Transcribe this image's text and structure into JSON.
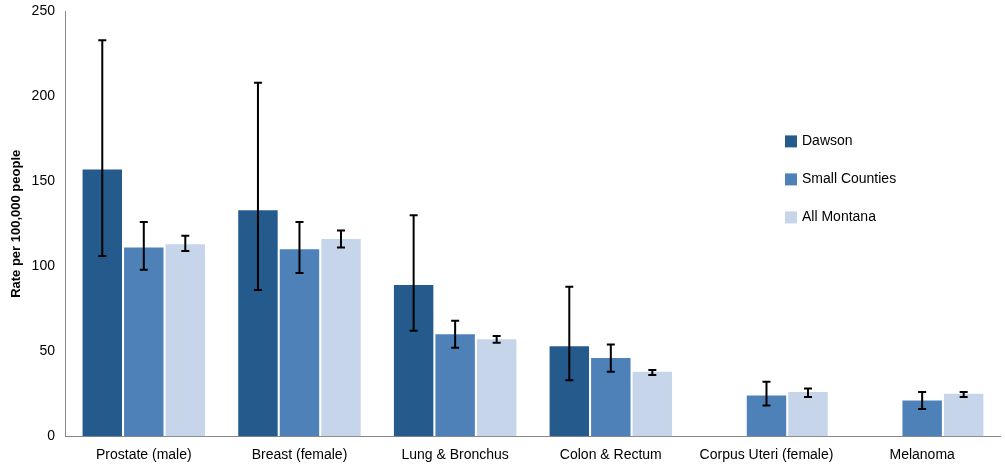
{
  "chart_data": {
    "type": "bar",
    "ylabel": "Rate per 100,000 people",
    "categories": [
      "Prostate (male)",
      "Breast (female)",
      "Lung & Bronchus",
      "Colon & Rectum",
      "Corpus Uteri (female)",
      "Melanoma"
    ],
    "series": [
      {
        "name": "Dawson",
        "color": "#255a8c",
        "values": [
          157,
          133,
          89,
          53,
          null,
          null
        ],
        "errors": [
          [
            106,
            233
          ],
          [
            86,
            208
          ],
          [
            62,
            130
          ],
          [
            33,
            88
          ],
          null,
          null
        ]
      },
      {
        "name": "Small Counties",
        "color": "#4f81b9",
        "values": [
          111,
          110,
          60,
          46,
          24,
          21
        ],
        "errors": [
          [
            98,
            126
          ],
          [
            96,
            126
          ],
          [
            52,
            68
          ],
          [
            38,
            54
          ],
          [
            18,
            32
          ],
          [
            16,
            26
          ]
        ]
      },
      {
        "name": "All Montana",
        "color": "#c6d5ea",
        "values": [
          113,
          116,
          57,
          38,
          26,
          25
        ],
        "errors": [
          [
            109,
            118
          ],
          [
            111,
            121
          ],
          [
            55,
            59
          ],
          [
            36,
            39
          ],
          [
            23,
            28
          ],
          [
            23,
            26
          ]
        ]
      }
    ],
    "ylim": [
      0,
      250
    ],
    "yticks": [
      0,
      50,
      100,
      150,
      200,
      250
    ],
    "grid": false,
    "legend": "right"
  }
}
